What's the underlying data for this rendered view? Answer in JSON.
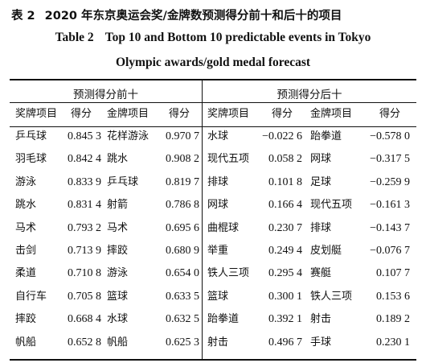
{
  "caption_zh": {
    "number": "表 2",
    "text": "2020 年东京奥运会奖/金牌数预测得分前十和后十的项目"
  },
  "caption_en": {
    "number": "Table 2",
    "line1": "Top 10 and Bottom 10 predictable events in Tokyo",
    "line2": "Olympic awards/gold medal forecast"
  },
  "groups": {
    "top": "预测得分前十",
    "bottom": "预测得分后十"
  },
  "headers": [
    "奖牌项目",
    "得分",
    "金牌项目",
    "得分",
    "奖牌项目",
    "得分",
    "金牌项目",
    "得分"
  ],
  "rows": [
    [
      "乒乓球",
      "0.845 3",
      "花样游泳",
      "0.970 7",
      "水球",
      "−0.022 6",
      "跆拳道",
      "−0.578 0"
    ],
    [
      "羽毛球",
      "0.842 4",
      "跳水",
      "0.908 2",
      "现代五项",
      "0.058 2",
      "网球",
      "−0.317 5"
    ],
    [
      "游泳",
      "0.833 9",
      "乒乓球",
      "0.819 7",
      "排球",
      "0.101 8",
      "足球",
      "−0.259 9"
    ],
    [
      "跳水",
      "0.831 4",
      "射箭",
      "0.786 8",
      "网球",
      "0.166 4",
      "现代五项",
      "−0.161 3"
    ],
    [
      "马术",
      "0.793 2",
      "马术",
      "0.695 6",
      "曲棍球",
      "0.230 7",
      "排球",
      "−0.143 7"
    ],
    [
      "击剑",
      "0.713 9",
      "摔跤",
      "0.680 9",
      "举重",
      "0.249 4",
      "皮划艇",
      "−0.076 7"
    ],
    [
      "柔道",
      "0.710 8",
      "游泳",
      "0.654 0",
      "铁人三项",
      "0.295 4",
      "赛艇",
      "0.107 7"
    ],
    [
      "自行车",
      "0.705 8",
      "篮球",
      "0.633 5",
      "篮球",
      "0.300 1",
      "铁人三项",
      "0.153 6"
    ],
    [
      "摔跤",
      "0.668 4",
      "水球",
      "0.632 5",
      "跆拳道",
      "0.392 1",
      "射击",
      "0.189 2"
    ],
    [
      "帆船",
      "0.652 8",
      "帆船",
      "0.625 3",
      "射击",
      "0.496 7",
      "手球",
      "0.230 1"
    ]
  ]
}
